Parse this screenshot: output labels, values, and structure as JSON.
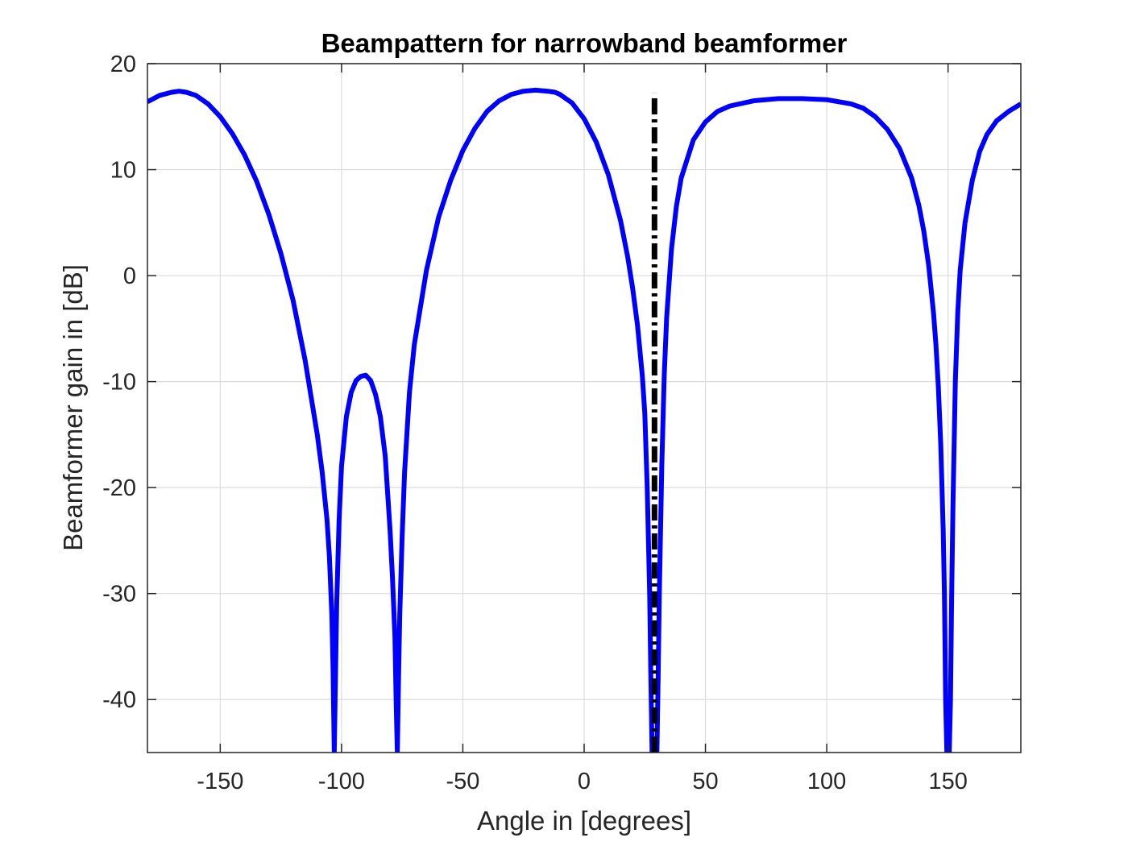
{
  "chart_data": {
    "type": "line",
    "title": "Beampattern for narrowband beamformer",
    "xlabel": "Angle in [degrees]",
    "ylabel": "Beamformer gain in [dB]",
    "xlim": [
      -180,
      180
    ],
    "ylim": [
      -45,
      20
    ],
    "xticks": [
      -150,
      -100,
      -50,
      0,
      50,
      100,
      150
    ],
    "yticks": [
      -40,
      -30,
      -20,
      -10,
      0,
      10,
      20
    ],
    "grid": true,
    "series": [
      {
        "color": "#0000ff",
        "style": "solid",
        "x": [
          -180,
          -175,
          -170,
          -167,
          -164,
          -160,
          -155,
          -150,
          -145,
          -140,
          -135,
          -130,
          -125,
          -120,
          -115,
          -110,
          -108,
          -106,
          -105,
          -104,
          -103.5,
          -103,
          -102.5,
          -102,
          -101,
          -100,
          -98,
          -96,
          -94,
          -92,
          -90,
          -88,
          -86,
          -84,
          -82,
          -80,
          -79,
          -78,
          -77.5,
          -77,
          -76.5,
          -76,
          -75,
          -74,
          -72,
          -70,
          -65,
          -60,
          -55,
          -50,
          -45,
          -40,
          -35,
          -30,
          -25,
          -20,
          -15,
          -12,
          -10,
          -5,
          0,
          5,
          10,
          15,
          18,
          20,
          22,
          24,
          25,
          26,
          27,
          27.5,
          28,
          28.5,
          29,
          29.5,
          30,
          30.5,
          31,
          32,
          33,
          34,
          36,
          38,
          40,
          45,
          50,
          55,
          60,
          70,
          80,
          90,
          100,
          110,
          115,
          120,
          125,
          130,
          135,
          138,
          140,
          142,
          144,
          145,
          146,
          147,
          148,
          148.5,
          149,
          149.5,
          150,
          150.5,
          151,
          151.5,
          152,
          153,
          154,
          155,
          157,
          160,
          163,
          166,
          170,
          175,
          180
        ],
        "y": [
          16.4,
          17.0,
          17.3,
          17.4,
          17.3,
          17.0,
          16.2,
          15.0,
          13.4,
          11.4,
          8.9,
          5.8,
          2.1,
          -2.3,
          -8.0,
          -15.0,
          -18.5,
          -23.0,
          -26.5,
          -32.0,
          -37.0,
          -45.0,
          -38.0,
          -31.0,
          -23.0,
          -18.0,
          -13.3,
          -11.0,
          -9.9,
          -9.5,
          -9.4,
          -9.9,
          -11.2,
          -13.3,
          -17.0,
          -24.0,
          -28.5,
          -34.0,
          -40.0,
          -45.0,
          -38.0,
          -32.0,
          -24.5,
          -18.5,
          -11.0,
          -6.5,
          0.5,
          5.5,
          9.0,
          11.8,
          13.9,
          15.5,
          16.5,
          17.1,
          17.4,
          17.5,
          17.4,
          17.3,
          17.1,
          16.3,
          14.8,
          12.6,
          9.5,
          5.2,
          1.7,
          -1.2,
          -4.7,
          -9.5,
          -13.0,
          -20.0,
          -30.0,
          -38.0,
          -45.0,
          -45.0,
          -45.0,
          -45.0,
          -45.0,
          -38.0,
          -30.0,
          -18.0,
          -9.5,
          -4.0,
          2.5,
          6.5,
          9.2,
          12.8,
          14.5,
          15.5,
          16.0,
          16.5,
          16.7,
          16.7,
          16.6,
          16.2,
          15.8,
          15.0,
          13.8,
          12.0,
          9.2,
          6.6,
          4.2,
          1.0,
          -3.5,
          -6.5,
          -10.5,
          -16.0,
          -24.0,
          -30.0,
          -40.0,
          -45.0,
          -45.0,
          -45.0,
          -40.0,
          -30.0,
          -22.0,
          -10.0,
          -3.5,
          0.5,
          5.0,
          9.0,
          11.7,
          13.3,
          14.6,
          15.5,
          16.2
        ]
      },
      {
        "color": "#000000",
        "style": "dash-dot",
        "x": [
          29,
          29
        ],
        "y": [
          -45,
          17.2
        ]
      }
    ]
  }
}
